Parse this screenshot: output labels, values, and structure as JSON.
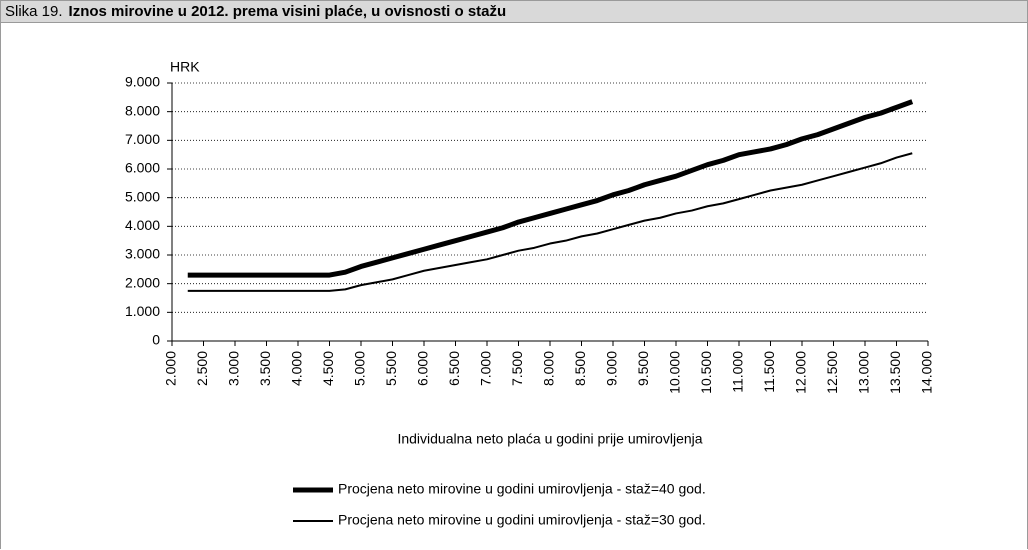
{
  "chart_data": {
    "type": "line",
    "figure_label": "Slika 19.",
    "title": "Iznos mirovine u 2012. prema visini plaće, u ovisnosti o stažu",
    "ylabel": "HRK",
    "xlabel": "Individualna neto plaća u godini prije umirovljenja",
    "x": [
      2250,
      2500,
      2750,
      3000,
      3250,
      3500,
      3750,
      4000,
      4250,
      4500,
      4750,
      5000,
      5250,
      5500,
      5750,
      6000,
      6250,
      6500,
      6750,
      7000,
      7250,
      7500,
      7750,
      8000,
      8250,
      8500,
      8750,
      9000,
      9250,
      9500,
      9750,
      10000,
      10250,
      10500,
      10750,
      11000,
      11250,
      11500,
      11750,
      12000,
      12250,
      12500,
      12750,
      13000,
      13250,
      13500,
      13750
    ],
    "series": [
      {
        "name": "Procjena neto mirovine u godini umirovljenja - staž=40 god.",
        "color": "#000000",
        "width": 5,
        "values": [
          2300,
          2300,
          2300,
          2300,
          2300,
          2300,
          2300,
          2300,
          2300,
          2300,
          2400,
          2600,
          2750,
          2900,
          3050,
          3200,
          3350,
          3500,
          3650,
          3800,
          3950,
          4150,
          4300,
          4450,
          4600,
          4750,
          4900,
          5100,
          5250,
          5450,
          5600,
          5750,
          5950,
          6150,
          6300,
          6500,
          6600,
          6700,
          6850,
          7050,
          7200,
          7400,
          7600,
          7800,
          7950,
          8150,
          8350
        ]
      },
      {
        "name": "Procjena neto mirovine u godini umirovljenja - staž=30 god.",
        "color": "#000000",
        "width": 2,
        "values": [
          1750,
          1750,
          1750,
          1750,
          1750,
          1750,
          1750,
          1750,
          1750,
          1750,
          1800,
          1950,
          2050,
          2150,
          2300,
          2450,
          2550,
          2650,
          2750,
          2850,
          3000,
          3150,
          3250,
          3400,
          3500,
          3650,
          3750,
          3900,
          4050,
          4200,
          4300,
          4450,
          4550,
          4700,
          4800,
          4950,
          5100,
          5250,
          5350,
          5450,
          5600,
          5750,
          5900,
          6050,
          6200,
          6400,
          6550
        ]
      }
    ],
    "xlim": [
      2000,
      14000
    ],
    "xticks": [
      {
        "value": 2000,
        "label": "2.000"
      },
      {
        "value": 2500,
        "label": "2.500"
      },
      {
        "value": 3000,
        "label": "3.000"
      },
      {
        "value": 3500,
        "label": "3.500"
      },
      {
        "value": 4000,
        "label": "4.000"
      },
      {
        "value": 4500,
        "label": "4.500"
      },
      {
        "value": 5000,
        "label": "5.000"
      },
      {
        "value": 5500,
        "label": "5.500"
      },
      {
        "value": 6000,
        "label": "6.000"
      },
      {
        "value": 6500,
        "label": "6.500"
      },
      {
        "value": 7000,
        "label": "7.000"
      },
      {
        "value": 7500,
        "label": "7.500"
      },
      {
        "value": 8000,
        "label": "8.000"
      },
      {
        "value": 8500,
        "label": "8.500"
      },
      {
        "value": 9000,
        "label": "9.000"
      },
      {
        "value": 9500,
        "label": "9.500"
      },
      {
        "value": 10000,
        "label": "10.000"
      },
      {
        "value": 10500,
        "label": "10.500"
      },
      {
        "value": 11000,
        "label": "11.000"
      },
      {
        "value": 11500,
        "label": "11.500"
      },
      {
        "value": 12000,
        "label": "12.000"
      },
      {
        "value": 12500,
        "label": "12.500"
      },
      {
        "value": 13000,
        "label": "13.000"
      },
      {
        "value": 13500,
        "label": "13.500"
      },
      {
        "value": 14000,
        "label": "14.000"
      }
    ],
    "ylim": [
      0,
      9000
    ],
    "yticks": [
      0,
      {
        "value": 1000,
        "label": "1.000"
      },
      {
        "value": 2000,
        "label": "2.000"
      },
      {
        "value": 3000,
        "label": "3.000"
      },
      {
        "value": 4000,
        "label": "4.000"
      },
      {
        "value": 5000,
        "label": "5.000"
      },
      {
        "value": 6000,
        "label": "6.000"
      },
      {
        "value": 7000,
        "label": "7.000"
      },
      {
        "value": 8000,
        "label": "8.000"
      },
      {
        "value": 9000,
        "label": "9.000"
      }
    ],
    "grid": true
  }
}
